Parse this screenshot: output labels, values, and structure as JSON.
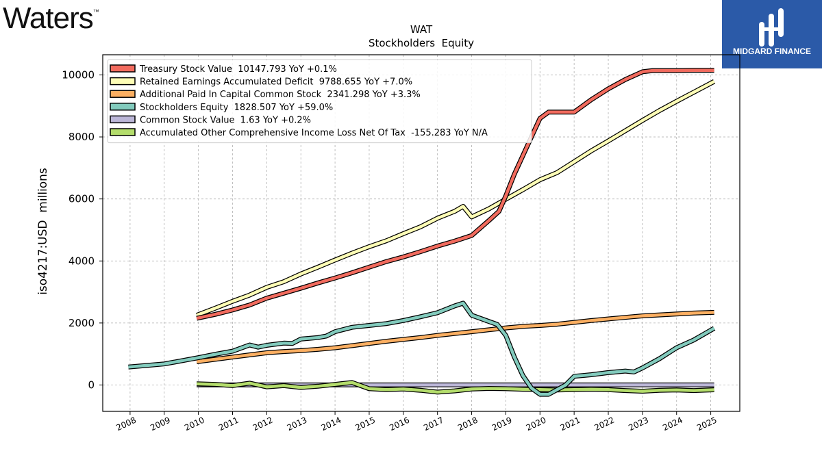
{
  "brand_left": {
    "name": "Waters",
    "tm": "™"
  },
  "brand_right": {
    "name": "MIDGARD FINANCE"
  },
  "colors": {
    "treasury": "#f26b5e",
    "retained": "#fdfdb6",
    "apic": "#fcaf62",
    "equity": "#82cbbd",
    "common": "#bcb7d8",
    "aoci": "#b4dd6c",
    "brand_blue": "#2b5aa8"
  },
  "chart_data": {
    "type": "line",
    "title": "WAT",
    "subtitle": "Stockholders  Equity",
    "ylabel": "iso4217:USD  millions",
    "xlabel": "",
    "xlim": [
      2007.2,
      2025.85
    ],
    "ylim": [
      -850,
      10650
    ],
    "yticks": [
      0,
      2000,
      4000,
      6000,
      8000,
      10000
    ],
    "xticks": [
      "2008",
      "2009",
      "2010",
      "2011",
      "2012",
      "2013",
      "2014",
      "2015",
      "2016",
      "2017",
      "2018",
      "2019",
      "2020",
      "2021",
      "2022",
      "2023",
      "2024",
      "2025"
    ],
    "grid": true,
    "legend_position": "top-left",
    "series": [
      {
        "key": "treasury",
        "name": "Treasury Stock Value  10147.793 YoY +0.1%",
        "points": [
          [
            2009.95,
            2150
          ],
          [
            2010.5,
            2280
          ],
          [
            2011,
            2420
          ],
          [
            2011.5,
            2580
          ],
          [
            2012,
            2800
          ],
          [
            2012.5,
            2960
          ],
          [
            2013,
            3120
          ],
          [
            2013.5,
            3290
          ],
          [
            2014,
            3450
          ],
          [
            2014.5,
            3620
          ],
          [
            2015,
            3800
          ],
          [
            2015.5,
            3980
          ],
          [
            2016,
            4130
          ],
          [
            2016.5,
            4300
          ],
          [
            2017,
            4480
          ],
          [
            2017.5,
            4640
          ],
          [
            2018,
            4820
          ],
          [
            2018.5,
            5300
          ],
          [
            2018.8,
            5600
          ],
          [
            2019,
            6100
          ],
          [
            2019.25,
            6800
          ],
          [
            2019.5,
            7400
          ],
          [
            2019.75,
            8000
          ],
          [
            2020,
            8600
          ],
          [
            2020.25,
            8800
          ],
          [
            2020.5,
            8800
          ],
          [
            2021,
            8800
          ],
          [
            2021.5,
            9200
          ],
          [
            2022,
            9550
          ],
          [
            2022.5,
            9850
          ],
          [
            2023,
            10100
          ],
          [
            2023.3,
            10140
          ],
          [
            2024,
            10140
          ],
          [
            2024.5,
            10148
          ],
          [
            2025.1,
            10148
          ]
        ]
      },
      {
        "key": "retained",
        "name": "Retained Earnings Accumulated Deficit  9788.655 YoY +7.0%",
        "points": [
          [
            2009.95,
            2250
          ],
          [
            2010.5,
            2480
          ],
          [
            2011,
            2700
          ],
          [
            2011.5,
            2900
          ],
          [
            2012,
            3150
          ],
          [
            2012.5,
            3330
          ],
          [
            2013,
            3580
          ],
          [
            2013.5,
            3800
          ],
          [
            2014,
            4030
          ],
          [
            2014.5,
            4250
          ],
          [
            2015,
            4460
          ],
          [
            2015.5,
            4650
          ],
          [
            2016,
            4880
          ],
          [
            2016.5,
            5100
          ],
          [
            2017,
            5380
          ],
          [
            2017.5,
            5600
          ],
          [
            2017.75,
            5760
          ],
          [
            2018,
            5420
          ],
          [
            2018.5,
            5680
          ],
          [
            2019,
            5990
          ],
          [
            2019.5,
            6300
          ],
          [
            2020,
            6620
          ],
          [
            2020.5,
            6850
          ],
          [
            2021,
            7200
          ],
          [
            2021.5,
            7550
          ],
          [
            2022,
            7870
          ],
          [
            2022.5,
            8200
          ],
          [
            2023,
            8530
          ],
          [
            2023.5,
            8850
          ],
          [
            2024,
            9150
          ],
          [
            2024.5,
            9440
          ],
          [
            2025.1,
            9790
          ]
        ]
      },
      {
        "key": "apic",
        "name": "Additional Paid In Capital Common Stock  2341.298 YoY +3.3%",
        "points": [
          [
            2009.95,
            750
          ],
          [
            2010.5,
            830
          ],
          [
            2011,
            900
          ],
          [
            2011.5,
            970
          ],
          [
            2012,
            1040
          ],
          [
            2012.5,
            1080
          ],
          [
            2013,
            1110
          ],
          [
            2013.5,
            1150
          ],
          [
            2014,
            1200
          ],
          [
            2014.5,
            1270
          ],
          [
            2015,
            1340
          ],
          [
            2015.5,
            1410
          ],
          [
            2016,
            1470
          ],
          [
            2016.5,
            1530
          ],
          [
            2017,
            1600
          ],
          [
            2017.5,
            1660
          ],
          [
            2018,
            1720
          ],
          [
            2018.5,
            1780
          ],
          [
            2019,
            1840
          ],
          [
            2019.5,
            1890
          ],
          [
            2020,
            1920
          ],
          [
            2020.5,
            1960
          ],
          [
            2021,
            2020
          ],
          [
            2021.5,
            2080
          ],
          [
            2022,
            2130
          ],
          [
            2022.5,
            2180
          ],
          [
            2023,
            2230
          ],
          [
            2023.5,
            2260
          ],
          [
            2024,
            2290
          ],
          [
            2024.5,
            2320
          ],
          [
            2025.1,
            2341
          ]
        ]
      },
      {
        "key": "equity",
        "name": "Stockholders Equity  1828.507 YoY +59.0%",
        "points": [
          [
            2007.95,
            580
          ],
          [
            2008.5,
            630
          ],
          [
            2009,
            680
          ],
          [
            2009.5,
            780
          ],
          [
            2010,
            880
          ],
          [
            2010.5,
            990
          ],
          [
            2011,
            1090
          ],
          [
            2011.5,
            1290
          ],
          [
            2011.75,
            1220
          ],
          [
            2012,
            1280
          ],
          [
            2012.5,
            1350
          ],
          [
            2012.75,
            1340
          ],
          [
            2013,
            1480
          ],
          [
            2013.5,
            1530
          ],
          [
            2013.75,
            1580
          ],
          [
            2014,
            1720
          ],
          [
            2014.5,
            1860
          ],
          [
            2015,
            1920
          ],
          [
            2015.5,
            1980
          ],
          [
            2016,
            2080
          ],
          [
            2016.5,
            2200
          ],
          [
            2017,
            2330
          ],
          [
            2017.5,
            2550
          ],
          [
            2017.75,
            2640
          ],
          [
            2018,
            2250
          ],
          [
            2018.5,
            2050
          ],
          [
            2018.75,
            1950
          ],
          [
            2019,
            1600
          ],
          [
            2019.25,
            900
          ],
          [
            2019.5,
            300
          ],
          [
            2019.75,
            -100
          ],
          [
            2020,
            -300
          ],
          [
            2020.25,
            -300
          ],
          [
            2020.5,
            -150
          ],
          [
            2020.75,
            0
          ],
          [
            2021,
            280
          ],
          [
            2021.5,
            330
          ],
          [
            2022,
            400
          ],
          [
            2022.5,
            450
          ],
          [
            2022.75,
            420
          ],
          [
            2023,
            550
          ],
          [
            2023.5,
            850
          ],
          [
            2024,
            1200
          ],
          [
            2024.5,
            1450
          ],
          [
            2025.1,
            1829
          ]
        ]
      },
      {
        "key": "common",
        "name": "Common Stock Value  1.63 YoY +0.2%",
        "points": [
          [
            2009.95,
            2
          ],
          [
            2025.1,
            2
          ]
        ]
      },
      {
        "key": "aoci",
        "name": "Accumulated Other Comprehensive Income Loss Net Of Tax  -155.283 YoY N/A",
        "points": [
          [
            2009.95,
            40
          ],
          [
            2010.5,
            20
          ],
          [
            2011,
            -20
          ],
          [
            2011.5,
            60
          ],
          [
            2012,
            -60
          ],
          [
            2012.5,
            -20
          ],
          [
            2013,
            -80
          ],
          [
            2013.5,
            -40
          ],
          [
            2014,
            20
          ],
          [
            2014.5,
            80
          ],
          [
            2015,
            -120
          ],
          [
            2015.5,
            -150
          ],
          [
            2016,
            -130
          ],
          [
            2016.5,
            -170
          ],
          [
            2017,
            -230
          ],
          [
            2017.5,
            -190
          ],
          [
            2018,
            -130
          ],
          [
            2018.5,
            -110
          ],
          [
            2019,
            -120
          ],
          [
            2019.5,
            -140
          ],
          [
            2020,
            -150
          ],
          [
            2020.5,
            -160
          ],
          [
            2021,
            -150
          ],
          [
            2021.5,
            -140
          ],
          [
            2022,
            -150
          ],
          [
            2022.5,
            -180
          ],
          [
            2023,
            -200
          ],
          [
            2023.5,
            -170
          ],
          [
            2024,
            -160
          ],
          [
            2024.5,
            -180
          ],
          [
            2025.1,
            -155
          ]
        ]
      }
    ]
  }
}
